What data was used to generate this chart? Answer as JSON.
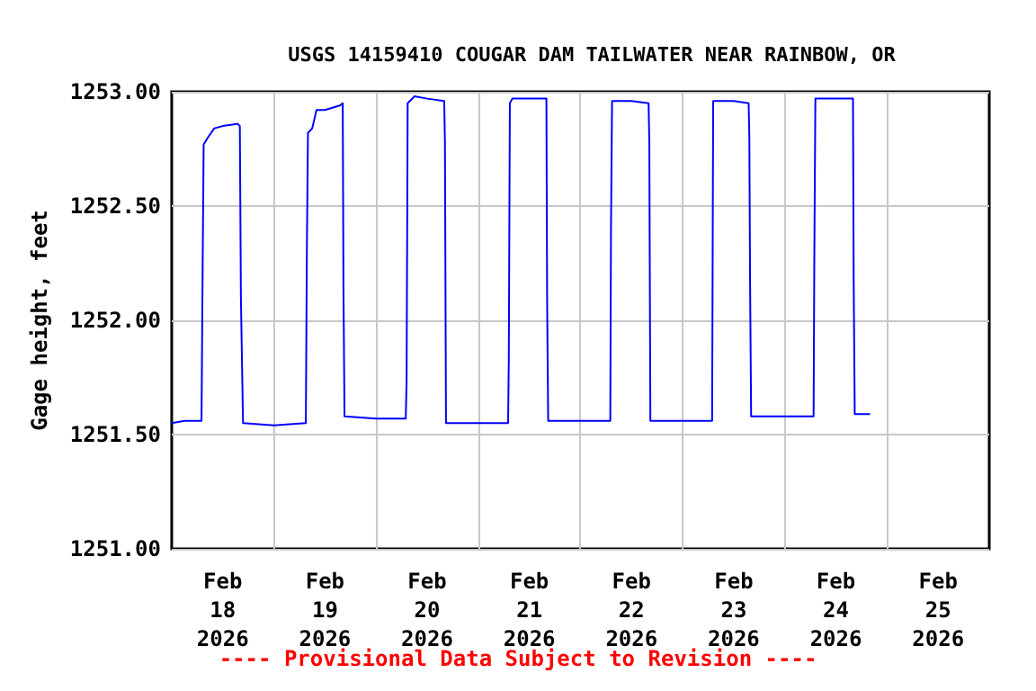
{
  "chart_data": {
    "type": "line",
    "title": "USGS 14159410 COUGAR DAM TAILWATER NEAR RAINBOW, OR",
    "ylabel": "Gage height, feet",
    "annotations": [
      "---- Provisional Data Subject to Revision ----"
    ],
    "x": [
      "2026-02-18T00:00",
      "2026-02-18T03:00",
      "2026-02-18T07:00",
      "2026-02-18T07:15",
      "2026-02-18T07:30",
      "2026-02-18T08:30",
      "2026-02-18T10:00",
      "2026-02-18T12:00",
      "2026-02-18T15:30",
      "2026-02-18T16:00",
      "2026-02-18T16:15",
      "2026-02-18T16:45",
      "2026-02-19T00:00",
      "2026-02-19T07:30",
      "2026-02-19T07:45",
      "2026-02-19T08:00",
      "2026-02-19T09:00",
      "2026-02-19T10:00",
      "2026-02-19T12:00",
      "2026-02-19T15:30",
      "2026-02-19T16:10",
      "2026-02-19T16:20",
      "2026-02-19T16:35",
      "2026-02-20T00:00",
      "2026-02-20T06:58",
      "2026-02-20T07:10",
      "2026-02-20T07:25",
      "2026-02-20T09:00",
      "2026-02-20T12:00",
      "2026-02-20T16:00",
      "2026-02-20T16:10",
      "2026-02-20T16:25",
      "2026-02-21T00:00",
      "2026-02-21T07:00",
      "2026-02-21T07:10",
      "2026-02-21T07:25",
      "2026-02-21T08:00",
      "2026-02-21T16:00",
      "2026-02-21T16:10",
      "2026-02-21T16:25",
      "2026-02-22T00:00",
      "2026-02-22T07:00",
      "2026-02-22T07:10",
      "2026-02-22T07:25",
      "2026-02-22T12:00",
      "2026-02-22T16:00",
      "2026-02-22T16:10",
      "2026-02-22T16:25",
      "2026-02-23T00:00",
      "2026-02-23T06:55",
      "2026-02-23T07:10",
      "2026-02-23T12:00",
      "2026-02-23T15:30",
      "2026-02-23T15:40",
      "2026-02-23T15:50",
      "2026-02-23T16:05",
      "2026-02-24T00:00",
      "2026-02-24T06:45",
      "2026-02-24T06:55",
      "2026-02-24T07:10",
      "2026-02-24T12:00",
      "2026-02-24T16:00",
      "2026-02-24T16:10",
      "2026-02-24T16:25",
      "2026-02-24T20:00"
    ],
    "series": [
      {
        "color": "#0000ff",
        "values": [
          1251.55,
          1251.56,
          1251.56,
          1252.2,
          1252.77,
          1252.8,
          1252.84,
          1252.85,
          1252.86,
          1252.85,
          1252.1,
          1251.55,
          1251.54,
          1251.55,
          1252.33,
          1252.82,
          1252.84,
          1252.92,
          1252.92,
          1252.94,
          1252.95,
          1252.15,
          1251.58,
          1251.57,
          1251.57,
          1251.74,
          1252.95,
          1252.98,
          1252.97,
          1252.96,
          1252.78,
          1251.55,
          1251.55,
          1251.55,
          1251.83,
          1252.95,
          1252.97,
          1252.97,
          1252.09,
          1251.56,
          1251.56,
          1251.56,
          1252.4,
          1252.96,
          1252.96,
          1252.95,
          1252.78,
          1251.56,
          1251.56,
          1251.56,
          1252.96,
          1252.96,
          1252.95,
          1252.79,
          1252.16,
          1251.58,
          1251.58,
          1251.58,
          1252.26,
          1252.97,
          1252.97,
          1252.97,
          1252.17,
          1251.59,
          1251.59
        ]
      }
    ],
    "xlim": [
      "2026-02-18T00:00",
      "2026-02-26T00:00"
    ],
    "xticks": [
      {
        "value": "2026-02-18T12:00",
        "label": "Feb\n18\n2026"
      },
      {
        "value": "2026-02-19T00:00",
        "label": null
      },
      {
        "value": "2026-02-19T12:00",
        "label": "Feb\n19\n2026"
      },
      {
        "value": "2026-02-20T00:00",
        "label": null
      },
      {
        "value": "2026-02-20T12:00",
        "label": "Feb\n20\n2026"
      },
      {
        "value": "2026-02-21T00:00",
        "label": null
      },
      {
        "value": "2026-02-21T12:00",
        "label": "Feb\n21\n2026"
      },
      {
        "value": "2026-02-22T00:00",
        "label": null
      },
      {
        "value": "2026-02-22T12:00",
        "label": "Feb\n22\n2026"
      },
      {
        "value": "2026-02-23T00:00",
        "label": null
      },
      {
        "value": "2026-02-23T12:00",
        "label": "Feb\n23\n2026"
      },
      {
        "value": "2026-02-24T00:00",
        "label": null
      },
      {
        "value": "2026-02-24T12:00",
        "label": "Feb\n24\n2026"
      },
      {
        "value": "2026-02-25T00:00",
        "label": null
      },
      {
        "value": "2026-02-25T12:00",
        "label": "Feb\n25\n2026"
      }
    ],
    "ylim": [
      1251,
      1253
    ],
    "yticks": [
      {
        "value": 1251,
        "label": "1251.00"
      },
      {
        "value": 1251.5,
        "label": "1251.50"
      },
      {
        "value": 1252,
        "label": "1252.00"
      },
      {
        "value": 1252.5,
        "label": "1252.50"
      },
      {
        "value": 1253,
        "label": "1253.00"
      }
    ],
    "grid": true,
    "marker": "none",
    "line_style": "solid"
  }
}
